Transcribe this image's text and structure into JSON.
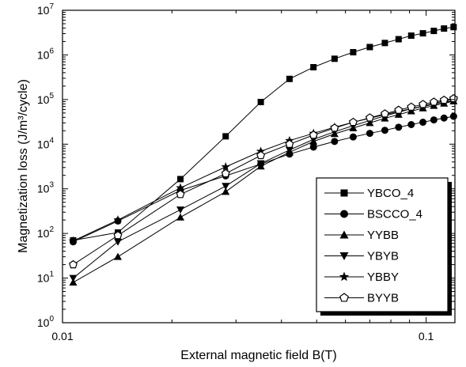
{
  "chart_data": {
    "type": "line",
    "xlabel": "External magnetic field B(T)",
    "ylabel": "Magnetization loss (J/m³/cycle)",
    "x_scale": "log",
    "y_scale": "log",
    "xlim": [
      0.01,
      0.12
    ],
    "ylim": [
      1,
      10000000
    ],
    "x_ticks": [
      {
        "value": 0.01,
        "label": "0.01"
      },
      {
        "value": 0.1,
        "label": "0.1"
      }
    ],
    "y_ticks": [
      {
        "value": 1,
        "base": "10",
        "exp": "0"
      },
      {
        "value": 10,
        "base": "10",
        "exp": "1"
      },
      {
        "value": 100,
        "base": "10",
        "exp": "2"
      },
      {
        "value": 1000,
        "base": "10",
        "exp": "3"
      },
      {
        "value": 10000,
        "base": "10",
        "exp": "4"
      },
      {
        "value": 100000,
        "base": "10",
        "exp": "5"
      },
      {
        "value": 1000000,
        "base": "10",
        "exp": "6"
      },
      {
        "value": 10000000,
        "base": "10",
        "exp": "7"
      }
    ],
    "grid": false,
    "legend_position": "bottom-right",
    "series": [
      {
        "name": "YBCO_4",
        "marker": "square",
        "x": [
          0.0107,
          0.0142,
          0.0211,
          0.0281,
          0.0351,
          0.0421,
          0.049,
          0.056,
          0.063,
          0.07,
          0.077,
          0.084,
          0.091,
          0.098,
          0.105,
          0.112,
          0.119
        ],
        "y": [
          70,
          105,
          1650,
          15000,
          88000,
          290000,
          530000,
          820000,
          1150000,
          1500000,
          1850000,
          2250000,
          2700000,
          3050000,
          3450000,
          3900000,
          4200000
        ]
      },
      {
        "name": "BSCCO_4",
        "marker": "circle",
        "x": [
          0.0107,
          0.0142,
          0.0211,
          0.0281,
          0.0351,
          0.0421,
          0.049,
          0.056,
          0.063,
          0.07,
          0.077,
          0.084,
          0.091,
          0.098,
          0.105,
          0.112,
          0.119
        ],
        "y": [
          65,
          190,
          920,
          1950,
          3600,
          6000,
          8600,
          11500,
          14500,
          17500,
          20500,
          24000,
          27500,
          31000,
          35000,
          38500,
          42000
        ]
      },
      {
        "name": "YYBB",
        "marker": "triangle-up",
        "x": [
          0.0107,
          0.0142,
          0.0211,
          0.0281,
          0.0351,
          0.0421,
          0.049,
          0.056,
          0.063,
          0.07,
          0.077,
          0.084,
          0.091,
          0.098,
          0.105,
          0.112,
          0.119
        ],
        "y": [
          8,
          30,
          230,
          860,
          3200,
          6600,
          11500,
          17000,
          23000,
          30000,
          38000,
          46000,
          55000,
          64000,
          73000,
          82000,
          92000
        ]
      },
      {
        "name": "YBYB",
        "marker": "triangle-down",
        "x": [
          0.0107,
          0.0142,
          0.0211,
          0.0281,
          0.0351,
          0.0421,
          0.049,
          0.056,
          0.063,
          0.07,
          0.077,
          0.084,
          0.091,
          0.098,
          0.105,
          0.112,
          0.119
        ],
        "y": [
          10,
          65,
          340,
          1150,
          3700,
          7400,
          12800,
          19000,
          26000,
          34000,
          43000,
          52000,
          62000,
          72000,
          82000,
          92000,
          100000
        ]
      },
      {
        "name": "YBBY",
        "marker": "star",
        "x": [
          0.0107,
          0.0142,
          0.0211,
          0.0281,
          0.0351,
          0.0421,
          0.049,
          0.056,
          0.063,
          0.07,
          0.077,
          0.084,
          0.091,
          0.098,
          0.105,
          0.112,
          0.119
        ],
        "y": [
          68,
          200,
          1050,
          3100,
          6900,
          12000,
          17500,
          24000,
          31000,
          38000,
          46000,
          54000,
          62000,
          70000,
          78000,
          86000,
          94000
        ]
      },
      {
        "name": "BYYB",
        "marker": "pentagon",
        "x": [
          0.0107,
          0.0142,
          0.0211,
          0.0281,
          0.0351,
          0.0421,
          0.049,
          0.056,
          0.063,
          0.07,
          0.077,
          0.084,
          0.091,
          0.098,
          0.105,
          0.112,
          0.119
        ],
        "y": [
          20,
          90,
          750,
          2200,
          5600,
          10000,
          16000,
          23000,
          31000,
          39000,
          48000,
          58000,
          68000,
          78000,
          88000,
          97000,
          105000
        ]
      }
    ]
  }
}
